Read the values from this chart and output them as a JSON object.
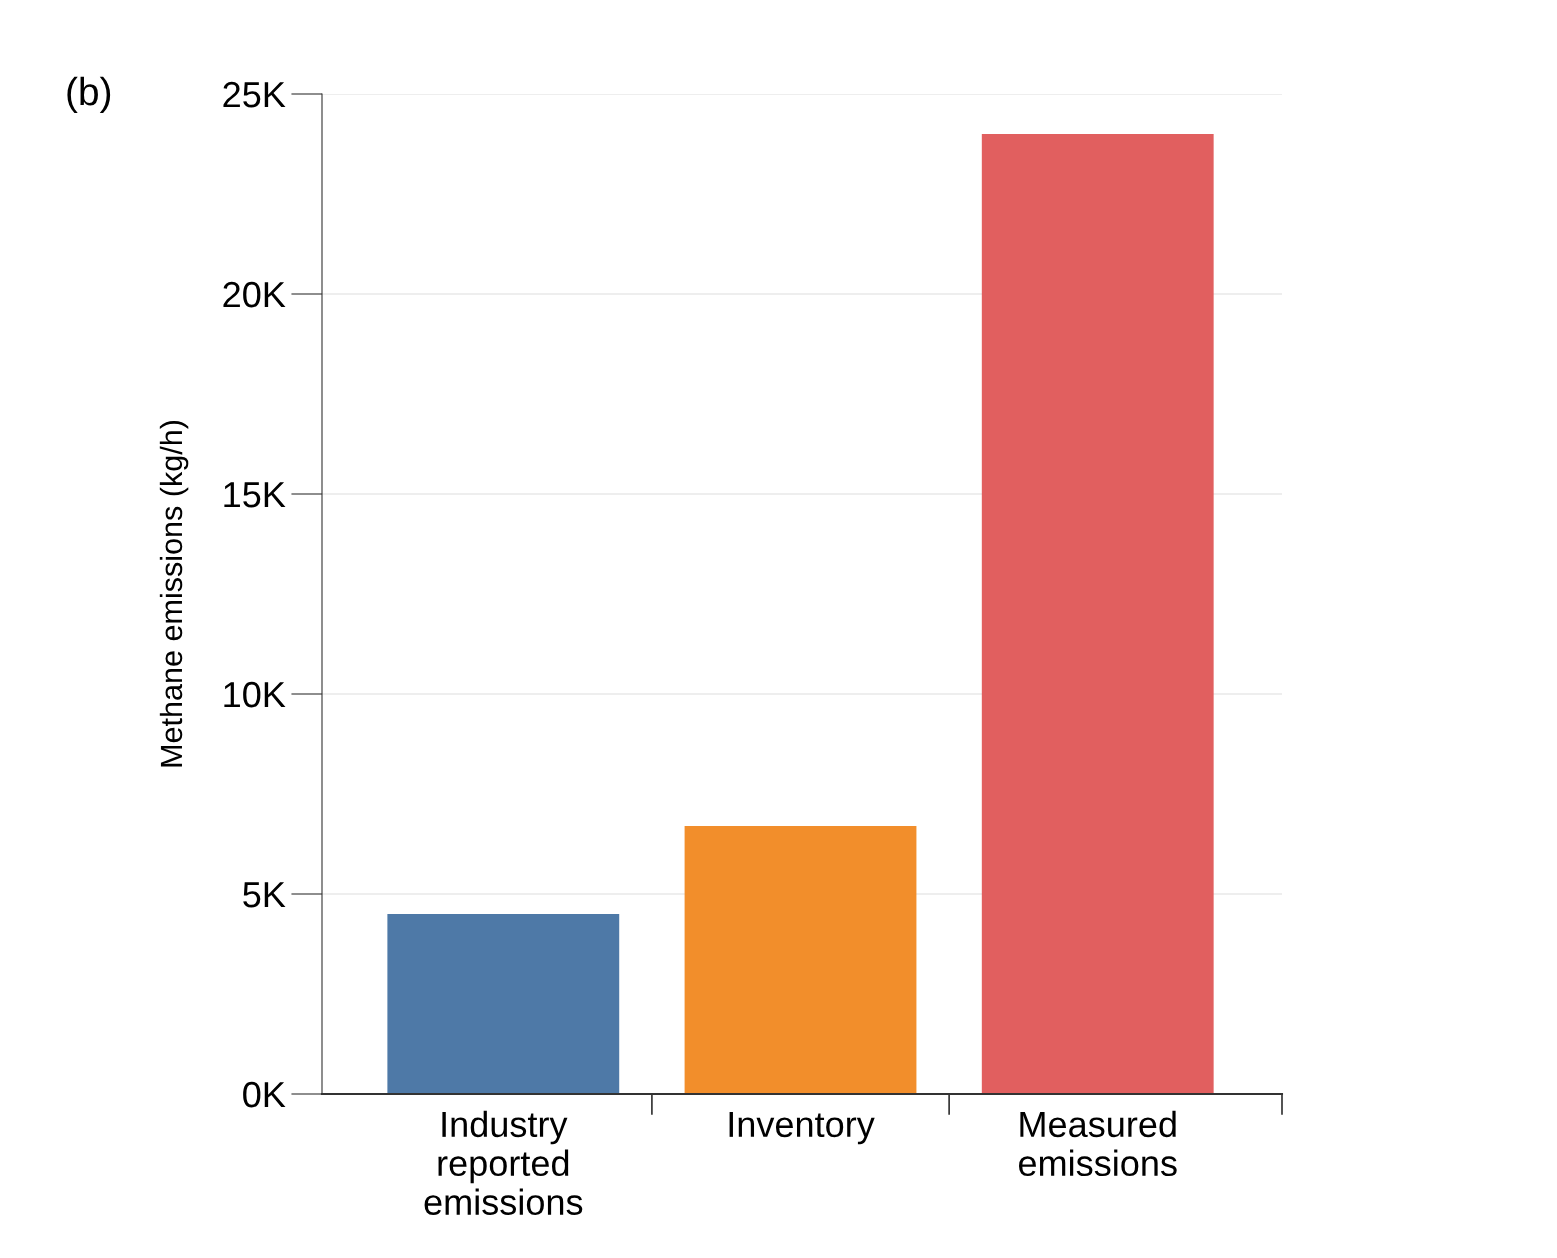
{
  "chart_data": {
    "type": "bar",
    "categories": [
      "Industry\nreported\nemissions",
      "Inventory",
      "Measured\nemissions"
    ],
    "values": [
      4500,
      6700,
      24000
    ],
    "colors": [
      "#4e79a7",
      "#f28e2b",
      "#e15f5f"
    ],
    "ylabel": "Methane emissions (kg/h)",
    "ylim": [
      0,
      25000
    ],
    "yticks": [
      {
        "value": 0,
        "label": "0K"
      },
      {
        "value": 5000,
        "label": "5K"
      },
      {
        "value": 10000,
        "label": "10K"
      },
      {
        "value": 15000,
        "label": "15K"
      },
      {
        "value": 20000,
        "label": "20K"
      },
      {
        "value": 25000,
        "label": "25K"
      }
    ],
    "grid": "y",
    "legend": false,
    "annotations": [
      "(b)"
    ]
  }
}
